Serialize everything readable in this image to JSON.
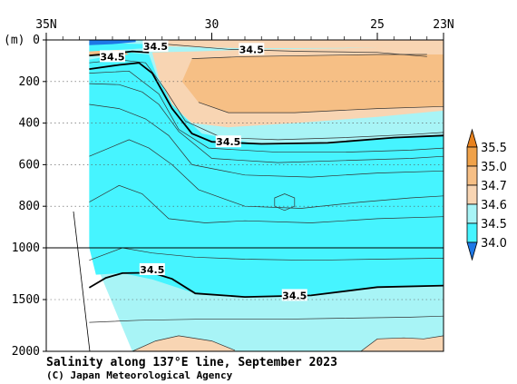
{
  "chart_data": {
    "type": "contour",
    "title": "Salinity along 137°E line, September 2023",
    "credit": "(C) Japan Meteorological Agency",
    "ylabel": "(m)",
    "x_ticks": [
      {
        "value": 35,
        "label": "35N"
      },
      {
        "value": 30,
        "label": "30"
      },
      {
        "value": 25,
        "label": "25"
      },
      {
        "value": 23,
        "label": "23N"
      }
    ],
    "xlim": [
      35,
      23
    ],
    "y_ticks": [
      0,
      200,
      400,
      600,
      800,
      1000,
      1500,
      2000
    ],
    "ylim": [
      0,
      2000
    ],
    "y_axis_break": "depth scale changes at 1000 m",
    "colorbar": {
      "levels": [
        "35.5",
        "35.0",
        "34.7",
        "34.6",
        "34.5",
        "34.0"
      ],
      "colors": {
        "above_35.5": "#e8821e",
        "35.0_35.5": "#f0a24a",
        "34.7_35.0": "#f6bf85",
        "34.6_34.7": "#f8d5b3",
        "34.5_34.6": "#a8f4f6",
        "34.0_34.5": "#46f4ff",
        "below_34.0": "#1e78e6"
      }
    },
    "contour_labels": [
      {
        "text": "34.5",
        "lat": 31.7,
        "depth": 30
      },
      {
        "text": "34.5",
        "lat": 33.0,
        "depth": 80
      },
      {
        "text": "34.5",
        "lat": 28.8,
        "depth": 45
      },
      {
        "text": "34.5",
        "lat": 29.5,
        "depth": 490
      },
      {
        "text": "34.5",
        "lat": 31.8,
        "depth": 1210
      },
      {
        "text": "34.5",
        "lat": 27.5,
        "depth": 1460
      }
    ]
  }
}
